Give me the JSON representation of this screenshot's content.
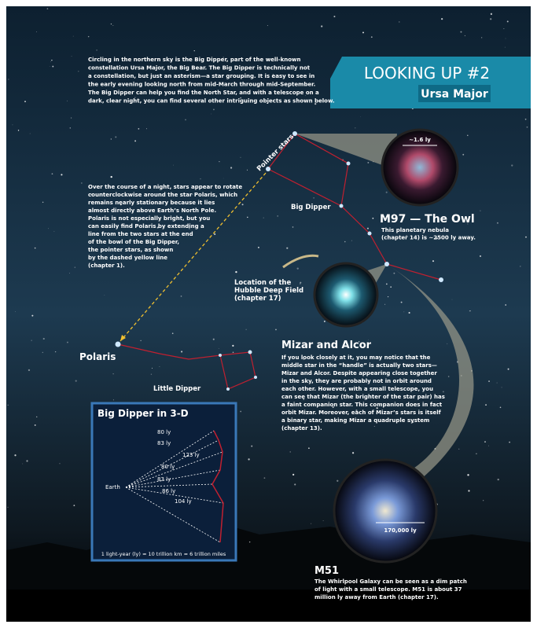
{
  "header": {
    "title": "LOOKING UP #2",
    "subtitle": "Ursa Major"
  },
  "intro": [
    "Circling in the northern sky is the Big Dipper, part of the well-known",
    "constellation Ursa Major, the Big Bear.  The Big Dipper is technically not",
    "a constellation, but just an asterism—a star grouping.  It is easy to see in",
    "the early evening looking north from mid-March through mid-September.",
    "The Big Dipper can help you find the North Star, and with a telescope on a",
    "dark, clear night, you can find several other intriguing objects as shown below."
  ],
  "polaris_text": [
    "Over the course of a night, stars appear to rotate",
    "counterclockwise around the star Polaris, which",
    "remains nearly stationary because it lies",
    "almost directly above Earth’s North Pole.",
    "Polaris is not especially bright, but you",
    "can easily find Polaris by extending a",
    "line from the two stars at the end",
    "of the bowl of the Big Dipper,",
    "the pointer stars, as shown",
    "by the dashed yellow line",
    "(chapter 1)."
  ],
  "labels": {
    "pointer_stars": "Pointer stars",
    "big_dipper": "Big Dipper",
    "polaris": "Polaris",
    "little_dipper": "Little Dipper",
    "hubble": [
      "Location of the",
      "Hubble Deep Field",
      "(chapter 17)"
    ]
  },
  "m97": {
    "title": "M97 — The Owl",
    "scale": "~1.6 ly",
    "text": [
      "This planetary nebula",
      "(chapter 14) is ~2500 ly away."
    ]
  },
  "mizar": {
    "title": "Mizar and Alcor",
    "text": [
      "If you look closely at it, you may notice that the",
      "middle star in the “handle” is actually two stars—",
      "Mizar and Alcor. Despite appearing close together",
      "in the sky, they are probably not in orbit around",
      "each other.  However, with a small telescope, you",
      "can see that Mizar (the brighter of the star pair) has",
      "a faint companion star.  This companion does in fact",
      "orbit Mizar.  Moreover, each of Mizar’s stars is itself",
      "a binary star, making Mizar a quadruple system",
      "(chapter 13)."
    ]
  },
  "m51": {
    "title": "M51",
    "scale": "170,000 ly",
    "text": [
      "The Whirlpool Galaxy can be seen as a dim patch",
      "of light with a small telescope.  M51 is about 37",
      "million ly away from Earth (chapter 17)."
    ]
  },
  "inset": {
    "title": "Big Dipper in 3-D",
    "earth": "Earth",
    "distances": [
      "80 ly",
      "83 ly",
      "123 ly",
      "80 ly",
      "83 ly",
      "86 ly",
      "104 ly"
    ],
    "footer": "1 light-year (ly) ≈ 10 trillion km ≈ 6 trillion miles"
  }
}
